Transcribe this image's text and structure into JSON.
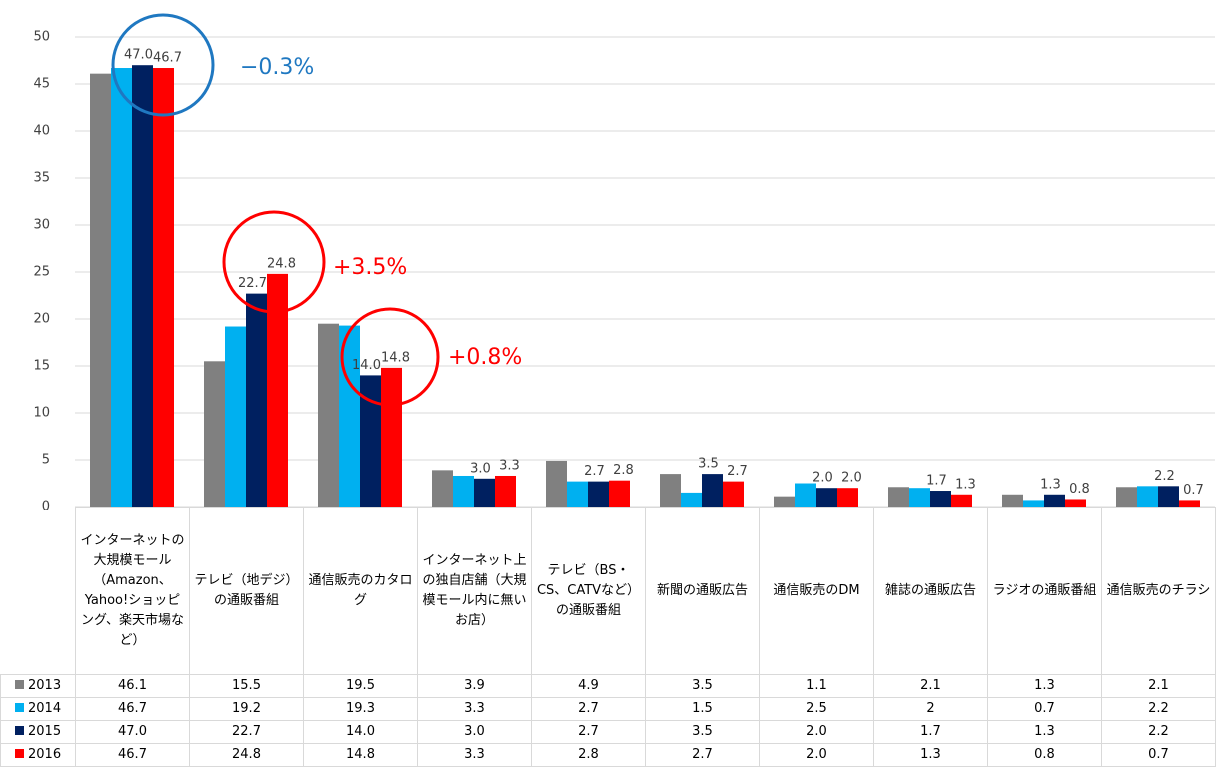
{
  "chart_data": {
    "type": "bar",
    "categories": [
      "インターネットの大規模モール（Amazon、Yahoo!ショッピング、楽天市場など）",
      "テレビ（地デジ）の通販番組",
      "通信販売のカタログ",
      "インターネット上の独自店舗（大規模モール内に無いお店）",
      "テレビ（BS・CS、CATVなど）の通販番組",
      "新聞の通販広告",
      "通信販売のDM",
      "雑誌の通販広告",
      "ラジオの通販番組",
      "通信販売のチラシ"
    ],
    "series": [
      {
        "name": "2013",
        "color": "#808080",
        "values": [
          46.1,
          15.5,
          19.5,
          3.9,
          4.9,
          3.5,
          1.1,
          2.1,
          1.3,
          2.1
        ],
        "value_labels": [
          "46.1",
          "15.5",
          "19.5",
          "3.9",
          "4.9",
          "3.5",
          "1.1",
          "2.1",
          "1.3",
          "2.1"
        ],
        "labels": false
      },
      {
        "name": "2014",
        "color": "#00b0f0",
        "values": [
          46.7,
          19.2,
          19.3,
          3.3,
          2.7,
          1.5,
          2.5,
          2,
          0.7,
          2.2
        ],
        "value_labels": [
          "46.7",
          "19.2",
          "19.3",
          "3.3",
          "2.7",
          "1.5",
          "2.5",
          "2",
          "0.7",
          "2.2"
        ],
        "labels": false
      },
      {
        "name": "2015",
        "color": "#002060",
        "values": [
          47.0,
          22.7,
          14.0,
          3.0,
          2.7,
          3.5,
          2.0,
          1.7,
          1.3,
          2.2
        ],
        "value_labels": [
          "47.0",
          "22.7",
          "14.0",
          "3.0",
          "2.7",
          "3.5",
          "2.0",
          "1.7",
          "1.3",
          "2.2"
        ],
        "labels": true
      },
      {
        "name": "2016",
        "color": "#ff0000",
        "values": [
          46.7,
          24.8,
          14.8,
          3.3,
          2.8,
          2.7,
          2.0,
          1.3,
          0.8,
          0.7
        ],
        "value_labels": [
          "46.7",
          "24.8",
          "14.8",
          "3.3",
          "2.8",
          "2.7",
          "2.0",
          "1.3",
          "0.8",
          "0.7"
        ],
        "labels": true
      }
    ],
    "ylim": [
      0,
      50
    ],
    "yticks": [
      0,
      5,
      10,
      15,
      20,
      25,
      30,
      35,
      40,
      45,
      50
    ],
    "grid": true,
    "annotations": [
      {
        "text": "−0.3%",
        "color": "#1f78c1"
      },
      {
        "text": "+3.5%",
        "color": "#ff0000"
      },
      {
        "text": "+0.8%",
        "color": "#ff0000"
      }
    ]
  }
}
